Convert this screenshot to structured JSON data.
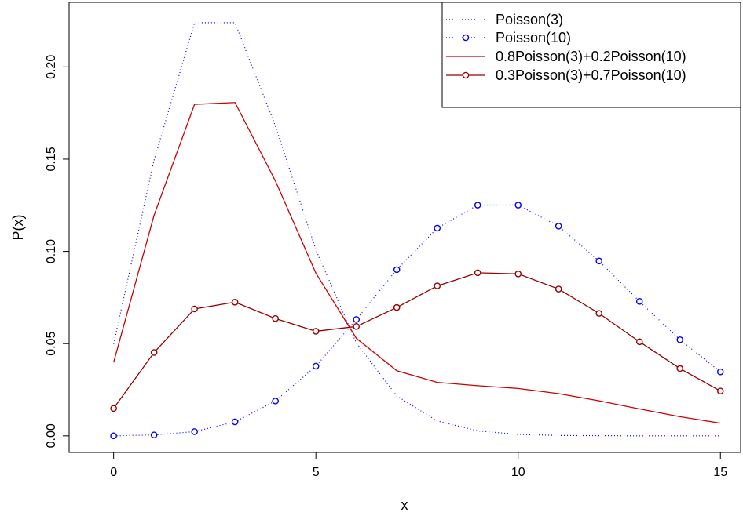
{
  "chart_data": {
    "type": "line",
    "title": "",
    "xlabel": "x",
    "ylabel": "P(x)",
    "xlim": [
      -1.1,
      15.5
    ],
    "ylim": [
      -0.009,
      0.235
    ],
    "xticks": [
      0,
      5,
      10,
      15
    ],
    "xtick_labels": [
      "0",
      "5",
      "10",
      "15"
    ],
    "yticks": [
      0.0,
      0.05,
      0.1,
      0.15,
      0.2
    ],
    "ytick_labels": [
      "0.00",
      "0.05",
      "0.10",
      "0.15",
      "0.20"
    ],
    "grid": false,
    "legend_position": "top-right",
    "x": [
      0,
      1,
      2,
      3,
      4,
      5,
      6,
      7,
      8,
      9,
      10,
      11,
      12,
      13,
      14,
      15
    ],
    "series": [
      {
        "name": "Poisson(3)",
        "color": "#0000ff",
        "line": "dotted",
        "marker": "none",
        "values": [
          0.0498,
          0.1494,
          0.224,
          0.224,
          0.168,
          0.1008,
          0.0504,
          0.0216,
          0.0081,
          0.0027,
          0.0008,
          0.0002,
          0.0001,
          0.0,
          0.0,
          0.0
        ]
      },
      {
        "name": "Poisson(10)",
        "color": "#0000ff",
        "line": "dotted",
        "marker": "circle",
        "values": [
          0.0,
          0.0005,
          0.0023,
          0.0076,
          0.0189,
          0.0378,
          0.0631,
          0.0901,
          0.1126,
          0.1251,
          0.1251,
          0.1137,
          0.0948,
          0.0729,
          0.0521,
          0.0347
        ]
      },
      {
        "name": "0.8Poisson(3)+0.2Poisson(10)",
        "color": "#cc0000",
        "line": "solid",
        "marker": "none",
        "values": [
          0.0398,
          0.1196,
          0.1797,
          0.1807,
          0.1382,
          0.0882,
          0.0529,
          0.0353,
          0.029,
          0.0272,
          0.0257,
          0.0229,
          0.019,
          0.0146,
          0.0104,
          0.0069
        ]
      },
      {
        "name": "0.3Poisson(3)+0.7Poisson(10)",
        "color": "#990000",
        "line": "solid",
        "marker": "circle",
        "values": [
          0.0149,
          0.0452,
          0.0688,
          0.0725,
          0.0636,
          0.0567,
          0.0593,
          0.0696,
          0.0813,
          0.0884,
          0.0878,
          0.0796,
          0.0664,
          0.051,
          0.0365,
          0.0243
        ]
      }
    ]
  }
}
